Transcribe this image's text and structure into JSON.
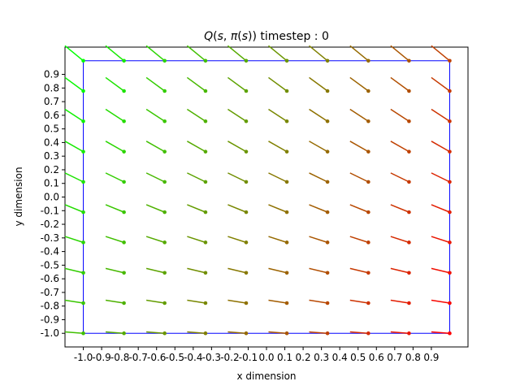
{
  "chart_data": {
    "type": "quiver",
    "title": "Q(s, π(s)) timestep : 0",
    "title_parts": {
      "q": "Q",
      "open": "(",
      "s": "s",
      "comma": ", ",
      "pi": "π",
      "inner_open": "(",
      "inner_s": "s",
      "close": "))",
      "suffix": " timestep : 0"
    },
    "xlabel": "x dimension",
    "ylabel": "y dimension",
    "xlim": [
      -1.1,
      1.1
    ],
    "ylim": [
      -1.1,
      1.1
    ],
    "grid": false,
    "x_ticks": [
      -1.0,
      -0.9,
      -0.8,
      -0.7,
      -0.6,
      -0.5,
      -0.4,
      -0.3,
      -0.2,
      -0.1,
      0.0,
      0.1,
      0.2,
      0.3,
      0.4,
      0.5,
      0.6,
      0.7,
      0.8,
      0.9
    ],
    "x_tick_labels": [
      "-1.0",
      "-0.9",
      "-0.8",
      "-0.7",
      "-0.6",
      "-0.5",
      "-0.4",
      "-0.3",
      "-0.2",
      "-0.1",
      "0.0",
      "0.1",
      "0.2",
      "0.3",
      "0.4",
      "0.5",
      "0.6",
      "0.7",
      "0.8",
      "0.9"
    ],
    "y_ticks": [
      -1.0,
      -0.9,
      -0.8,
      -0.7,
      -0.6,
      -0.5,
      -0.4,
      -0.3,
      -0.2,
      -0.1,
      0.0,
      0.1,
      0.2,
      0.3,
      0.4,
      0.5,
      0.6,
      0.7,
      0.8,
      0.9
    ],
    "y_tick_labels": [
      "-1.0",
      "-0.9",
      "-0.8",
      "-0.7",
      "-0.6",
      "-0.5",
      "-0.4",
      "-0.3",
      "-0.2",
      "-0.1",
      "0.0",
      "0.1",
      "0.2",
      "0.3",
      "0.4",
      "0.5",
      "0.6",
      "0.7",
      "0.8",
      "0.9"
    ],
    "boundary_box": {
      "x": [
        -1.0,
        1.0
      ],
      "y": [
        -1.0,
        1.0
      ],
      "color": "#0000ff"
    },
    "grid_points": {
      "x": [
        -1.0,
        -0.778,
        -0.556,
        -0.333,
        -0.111,
        0.111,
        0.333,
        0.556,
        0.778,
        1.0
      ],
      "y": [
        -1.0,
        -0.778,
        -0.556,
        -0.333,
        -0.111,
        0.111,
        0.333,
        0.556,
        0.778,
        1.0
      ]
    },
    "vector_rule": "arrow tail at (x - 0.1, y + 0.1*(y+1)/2 + 0.01), head marked with dot at grid point",
    "color_scale": {
      "low": "#00ff00",
      "high": "#ff0000"
    }
  }
}
